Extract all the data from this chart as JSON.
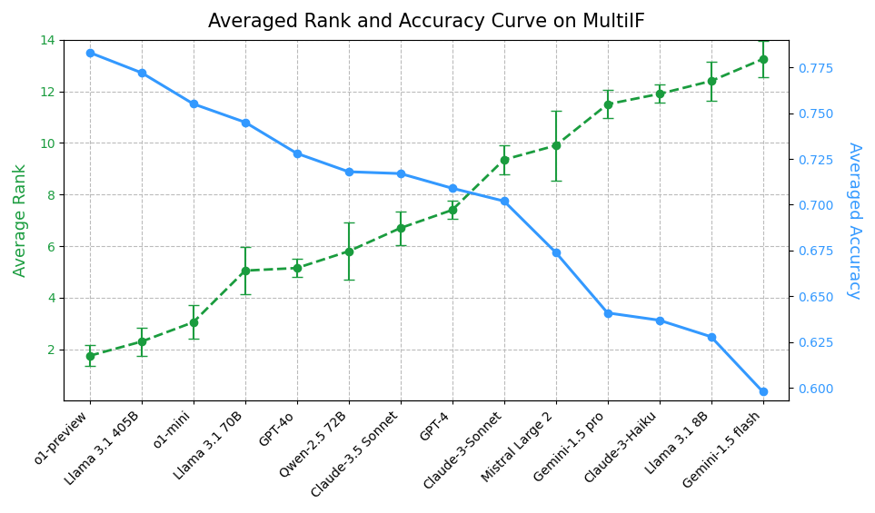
{
  "title": "Averaged Rank and Accuracy Curve on MultiIF",
  "models": [
    "o1-preview",
    "Llama 3.1 405B",
    "o1-mini",
    "Llama 3.1 70B",
    "GPT-4o",
    "Qwen-2.5 72B",
    "Claude-3.5 Sonnet",
    "GPT-4",
    "Claude-3-Sonnet",
    "Mistral Large 2",
    "Gemini-1.5 pro",
    "Claude-3-Haiku",
    "Llama 3.1 8B",
    "Gemini-1.5 flash"
  ],
  "rank_values": [
    1.75,
    2.3,
    3.05,
    5.05,
    5.15,
    5.8,
    6.7,
    7.4,
    9.35,
    9.9,
    11.5,
    11.9,
    12.4,
    13.25
  ],
  "rank_errors": [
    0.4,
    0.55,
    0.65,
    0.9,
    0.35,
    1.1,
    0.65,
    0.35,
    0.55,
    1.35,
    0.55,
    0.35,
    0.75,
    0.7
  ],
  "accuracy_values": [
    0.783,
    0.772,
    0.755,
    0.745,
    0.728,
    0.718,
    0.717,
    0.709,
    0.702,
    0.674,
    0.641,
    0.637,
    0.628,
    0.598
  ],
  "left_ylabel": "Average Rank",
  "right_ylabel": "Averaged Accuracy",
  "rank_color": "#1a9c3e",
  "accuracy_color": "#3399ff",
  "ylim_rank": [
    0,
    14
  ],
  "ylim_accuracy": [
    0.593,
    0.79
  ],
  "background_color": "#ffffff",
  "grid_color": "#bbbbbb",
  "left_yticks": [
    2,
    4,
    6,
    8,
    10,
    12,
    14
  ],
  "right_yticks": [
    0.6,
    0.625,
    0.65,
    0.675,
    0.7,
    0.725,
    0.75,
    0.775
  ],
  "title_fontsize": 15,
  "label_fontsize": 13,
  "tick_fontsize": 10
}
